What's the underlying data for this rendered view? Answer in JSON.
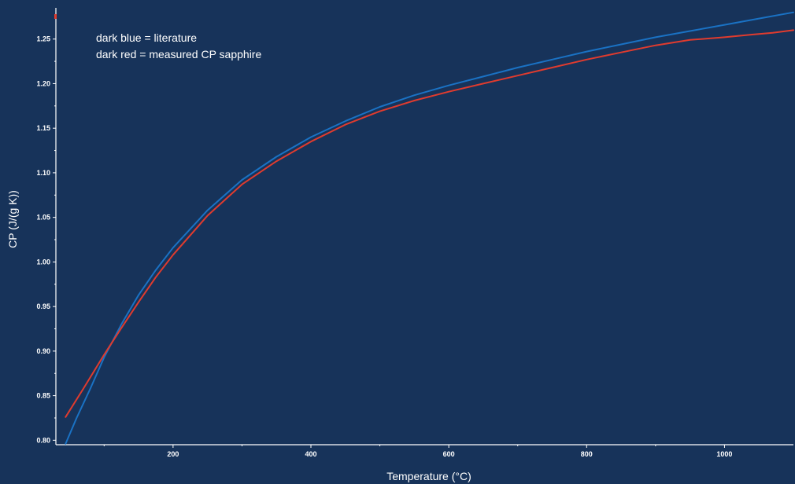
{
  "chart_data": {
    "type": "line",
    "title": "",
    "xlabel": "Temperature (°C)",
    "ylabel": "CP (J/(g K))",
    "xlim": [
      30,
      1100
    ],
    "ylim": [
      0.795,
      1.285
    ],
    "grid": false,
    "x_ticks": [
      200,
      400,
      600,
      800,
      1000
    ],
    "x_tick_labels": [
      "200",
      "400",
      "600",
      "800",
      "1000"
    ],
    "y_ticks": [
      0.8,
      0.85,
      0.9,
      0.95,
      1.0,
      1.05,
      1.1,
      1.15,
      1.2,
      1.25
    ],
    "y_tick_labels": [
      "0.80",
      "0.85",
      "0.90",
      "0.95",
      "1.00",
      "1.05",
      "1.10",
      "1.15",
      "1.20",
      "1.25"
    ],
    "annotations": [
      "dark blue = literature",
      "dark red = measured CP sapphire"
    ],
    "series": [
      {
        "color": "#1a72c4",
        "x": [
          44,
          60,
          80,
          100,
          125,
          150,
          175,
          200,
          250,
          300,
          350,
          400,
          450,
          500,
          550,
          600,
          650,
          700,
          750,
          800,
          850,
          900,
          950,
          1000,
          1050,
          1100
        ],
        "y": [
          0.796,
          0.825,
          0.858,
          0.893,
          0.93,
          0.963,
          0.991,
          1.016,
          1.058,
          1.092,
          1.118,
          1.14,
          1.158,
          1.174,
          1.187,
          1.198,
          1.208,
          1.218,
          1.227,
          1.236,
          1.244,
          1.252,
          1.259,
          1.266,
          1.273,
          1.28
        ]
      },
      {
        "color": "#e03b2e",
        "x": [
          44,
          70,
          100,
          125,
          150,
          175,
          200,
          250,
          300,
          350,
          400,
          450,
          500,
          550,
          600,
          650,
          700,
          750,
          800,
          850,
          900,
          950,
          1000,
          1040,
          1070,
          1100
        ],
        "y": [
          0.826,
          0.858,
          0.896,
          0.926,
          0.955,
          0.983,
          1.008,
          1.052,
          1.087,
          1.113,
          1.135,
          1.154,
          1.169,
          1.181,
          1.191,
          1.2,
          1.209,
          1.218,
          1.227,
          1.235,
          1.243,
          1.249,
          1.252,
          1.255,
          1.257,
          1.26
        ]
      }
    ]
  },
  "colors": {
    "background": "#17335a",
    "axis": "#ffffff",
    "text": "#ffffff"
  }
}
